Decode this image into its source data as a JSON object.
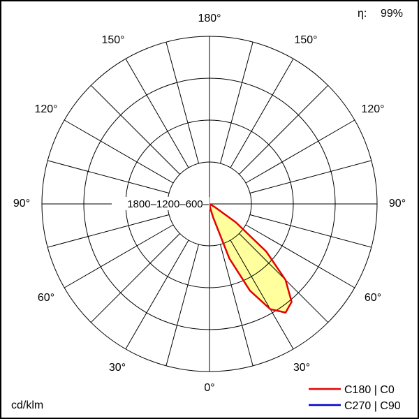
{
  "header": {
    "eta_label": "η:",
    "eta_value": "99%"
  },
  "footer": {
    "unit": "cd/klm"
  },
  "legend": {
    "items": [
      {
        "label": "C180 | C0",
        "color": "#e60000"
      },
      {
        "label": "C270 | C90",
        "color": "#0000d0"
      }
    ]
  },
  "polar": {
    "scale_text": "1800–1200–600–",
    "angle_labels": [
      "180°",
      "150°",
      "150°",
      "120°",
      "120°",
      "90°",
      "90°",
      "60°",
      "60°",
      "30°",
      "30°",
      "0°"
    ]
  },
  "chart_data": {
    "type": "polar",
    "unit": "cd/klm",
    "efficiency_percent": 99,
    "radial_ticks": [
      600,
      1200,
      1800
    ],
    "radial_max": 2400,
    "angular_tick_step_deg": 15,
    "angle_labels_deg": [
      0,
      30,
      60,
      90,
      120,
      150,
      180
    ],
    "gamma_deg": [
      0,
      5,
      10,
      15,
      20,
      25,
      30,
      35,
      40,
      45,
      50,
      55,
      60,
      65,
      70,
      75,
      80,
      85,
      90
    ],
    "series": [
      {
        "name": "C180 | C0",
        "color": "#e60000",
        "fill": "#ffff9e",
        "values_cd_klm": [
          0,
          0,
          60,
          200,
          830,
          1370,
          1740,
          1900,
          1830,
          1540,
          1060,
          460,
          80,
          0,
          0,
          0,
          0,
          0,
          0
        ]
      },
      {
        "name": "C270 | C90",
        "color": "#0000d0",
        "values_cd_klm": [
          0,
          0,
          0,
          0,
          0,
          0,
          0,
          0,
          0,
          0,
          0,
          0,
          0,
          0,
          0,
          0,
          0,
          0,
          0
        ]
      }
    ]
  }
}
